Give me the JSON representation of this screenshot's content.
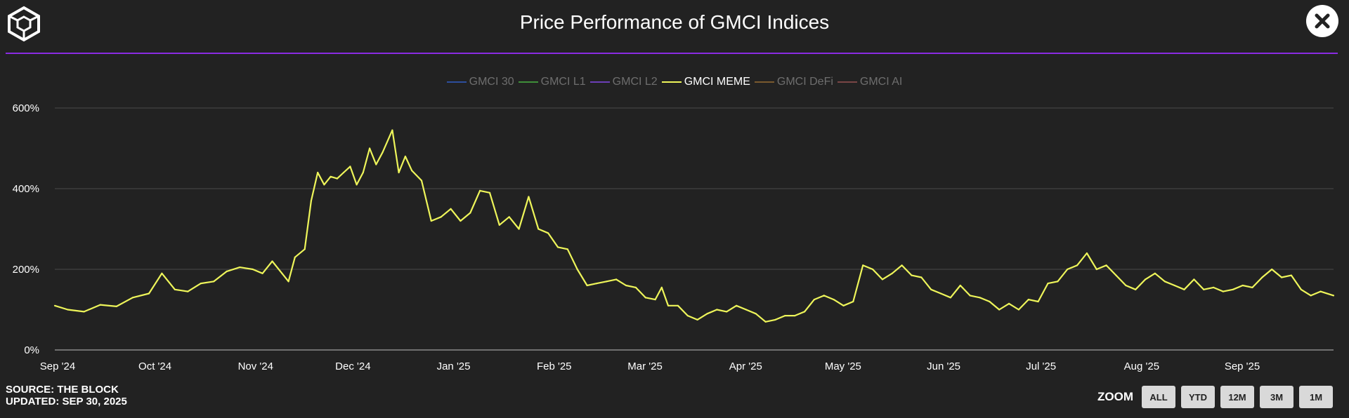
{
  "header": {
    "title": "Price Performance of GMCI Indices"
  },
  "colors": {
    "background": "#222222",
    "accent_rule": "#8a2be2",
    "meme_line": "#eef55a"
  },
  "icons": {
    "logo": "the-block-cube-logo-icon",
    "close": "close-x-icon"
  },
  "legend": {
    "items": [
      {
        "label": "GMCI 30",
        "color": "#2d4e9e",
        "active": false
      },
      {
        "label": "GMCI L1",
        "color": "#3f8f3a",
        "active": false
      },
      {
        "label": "GMCI L2",
        "color": "#6c3fb8",
        "active": false
      },
      {
        "label": "GMCI MEME",
        "color": "#eef55a",
        "active": true
      },
      {
        "label": "GMCI DeFi",
        "color": "#7a5a2e",
        "active": false
      },
      {
        "label": "GMCI AI",
        "color": "#7a4646",
        "active": false
      }
    ]
  },
  "chart_data": {
    "type": "line",
    "title": "Price Performance of GMCI Indices",
    "xlabel": "",
    "ylabel": "",
    "ylim": [
      0,
      600
    ],
    "yticks": [
      "0%",
      "200%",
      "400%",
      "600%"
    ],
    "xticks": [
      "Sep '24",
      "Oct '24",
      "Nov '24",
      "Dec '24",
      "Jan '25",
      "Feb '25",
      "Mar '25",
      "Apr '25",
      "May '25",
      "Jun '25",
      "Jul '25",
      "Aug '25",
      "Sep '25"
    ],
    "grid": "horizontal",
    "legend_position": "top-center",
    "series": [
      {
        "name": "GMCI MEME",
        "color": "#eef55a",
        "points": [
          [
            "2024-09-01",
            110
          ],
          [
            "2024-09-05",
            100
          ],
          [
            "2024-09-10",
            95
          ],
          [
            "2024-09-15",
            112
          ],
          [
            "2024-09-20",
            108
          ],
          [
            "2024-09-25",
            130
          ],
          [
            "2024-09-30",
            140
          ],
          [
            "2024-10-04",
            190
          ],
          [
            "2024-10-08",
            150
          ],
          [
            "2024-10-12",
            145
          ],
          [
            "2024-10-16",
            165
          ],
          [
            "2024-10-20",
            170
          ],
          [
            "2024-10-24",
            195
          ],
          [
            "2024-10-28",
            205
          ],
          [
            "2024-11-01",
            200
          ],
          [
            "2024-11-04",
            190
          ],
          [
            "2024-11-07",
            220
          ],
          [
            "2024-11-10",
            190
          ],
          [
            "2024-11-12",
            170
          ],
          [
            "2024-11-14",
            230
          ],
          [
            "2024-11-17",
            250
          ],
          [
            "2024-11-19",
            370
          ],
          [
            "2024-11-21",
            440
          ],
          [
            "2024-11-23",
            410
          ],
          [
            "2024-11-25",
            430
          ],
          [
            "2024-11-27",
            425
          ],
          [
            "2024-11-29",
            440
          ],
          [
            "2024-12-01",
            455
          ],
          [
            "2024-12-03",
            410
          ],
          [
            "2024-12-05",
            440
          ],
          [
            "2024-12-07",
            500
          ],
          [
            "2024-12-09",
            460
          ],
          [
            "2024-12-11",
            490
          ],
          [
            "2024-12-14",
            545
          ],
          [
            "2024-12-16",
            440
          ],
          [
            "2024-12-18",
            480
          ],
          [
            "2024-12-20",
            445
          ],
          [
            "2024-12-23",
            420
          ],
          [
            "2024-12-26",
            320
          ],
          [
            "2024-12-29",
            330
          ],
          [
            "2025-01-01",
            350
          ],
          [
            "2025-01-04",
            320
          ],
          [
            "2025-01-07",
            340
          ],
          [
            "2025-01-10",
            395
          ],
          [
            "2025-01-13",
            390
          ],
          [
            "2025-01-16",
            310
          ],
          [
            "2025-01-19",
            330
          ],
          [
            "2025-01-22",
            300
          ],
          [
            "2025-01-25",
            380
          ],
          [
            "2025-01-28",
            300
          ],
          [
            "2025-01-31",
            290
          ],
          [
            "2025-02-03",
            255
          ],
          [
            "2025-02-06",
            250
          ],
          [
            "2025-02-09",
            200
          ],
          [
            "2025-02-12",
            160
          ],
          [
            "2025-02-15",
            165
          ],
          [
            "2025-02-18",
            170
          ],
          [
            "2025-02-21",
            175
          ],
          [
            "2025-02-24",
            160
          ],
          [
            "2025-02-27",
            155
          ],
          [
            "2025-03-02",
            130
          ],
          [
            "2025-03-05",
            125
          ],
          [
            "2025-03-07",
            155
          ],
          [
            "2025-03-09",
            110
          ],
          [
            "2025-03-12",
            110
          ],
          [
            "2025-03-15",
            85
          ],
          [
            "2025-03-18",
            75
          ],
          [
            "2025-03-21",
            90
          ],
          [
            "2025-03-24",
            100
          ],
          [
            "2025-03-27",
            95
          ],
          [
            "2025-03-30",
            110
          ],
          [
            "2025-04-02",
            100
          ],
          [
            "2025-04-05",
            90
          ],
          [
            "2025-04-08",
            70
          ],
          [
            "2025-04-11",
            75
          ],
          [
            "2025-04-14",
            85
          ],
          [
            "2025-04-17",
            85
          ],
          [
            "2025-04-20",
            95
          ],
          [
            "2025-04-23",
            125
          ],
          [
            "2025-04-26",
            135
          ],
          [
            "2025-04-29",
            125
          ],
          [
            "2025-05-02",
            110
          ],
          [
            "2025-05-05",
            120
          ],
          [
            "2025-05-08",
            210
          ],
          [
            "2025-05-11",
            200
          ],
          [
            "2025-05-14",
            175
          ],
          [
            "2025-05-17",
            190
          ],
          [
            "2025-05-20",
            210
          ],
          [
            "2025-05-23",
            185
          ],
          [
            "2025-05-26",
            180
          ],
          [
            "2025-05-29",
            150
          ],
          [
            "2025-06-01",
            140
          ],
          [
            "2025-06-04",
            130
          ],
          [
            "2025-06-07",
            160
          ],
          [
            "2025-06-10",
            135
          ],
          [
            "2025-06-13",
            130
          ],
          [
            "2025-06-16",
            120
          ],
          [
            "2025-06-19",
            100
          ],
          [
            "2025-06-22",
            115
          ],
          [
            "2025-06-25",
            100
          ],
          [
            "2025-06-28",
            125
          ],
          [
            "2025-07-01",
            120
          ],
          [
            "2025-07-04",
            165
          ],
          [
            "2025-07-07",
            170
          ],
          [
            "2025-07-10",
            200
          ],
          [
            "2025-07-13",
            210
          ],
          [
            "2025-07-16",
            240
          ],
          [
            "2025-07-19",
            200
          ],
          [
            "2025-07-22",
            210
          ],
          [
            "2025-07-25",
            185
          ],
          [
            "2025-07-28",
            160
          ],
          [
            "2025-07-31",
            150
          ],
          [
            "2025-08-03",
            175
          ],
          [
            "2025-08-06",
            190
          ],
          [
            "2025-08-09",
            170
          ],
          [
            "2025-08-12",
            160
          ],
          [
            "2025-08-15",
            150
          ],
          [
            "2025-08-18",
            175
          ],
          [
            "2025-08-21",
            150
          ],
          [
            "2025-08-24",
            155
          ],
          [
            "2025-08-27",
            145
          ],
          [
            "2025-08-30",
            150
          ],
          [
            "2025-09-02",
            160
          ],
          [
            "2025-09-05",
            155
          ],
          [
            "2025-09-08",
            180
          ],
          [
            "2025-09-11",
            200
          ],
          [
            "2025-09-14",
            180
          ],
          [
            "2025-09-17",
            185
          ],
          [
            "2025-09-20",
            150
          ],
          [
            "2025-09-23",
            135
          ],
          [
            "2025-09-26",
            145
          ],
          [
            "2025-09-30",
            135
          ]
        ]
      }
    ]
  },
  "footer": {
    "source": "SOURCE: THE BLOCK",
    "updated": "UPDATED: SEP 30, 2025"
  },
  "zoom": {
    "label": "ZOOM",
    "buttons": [
      "ALL",
      "YTD",
      "12M",
      "3M",
      "1M"
    ]
  }
}
